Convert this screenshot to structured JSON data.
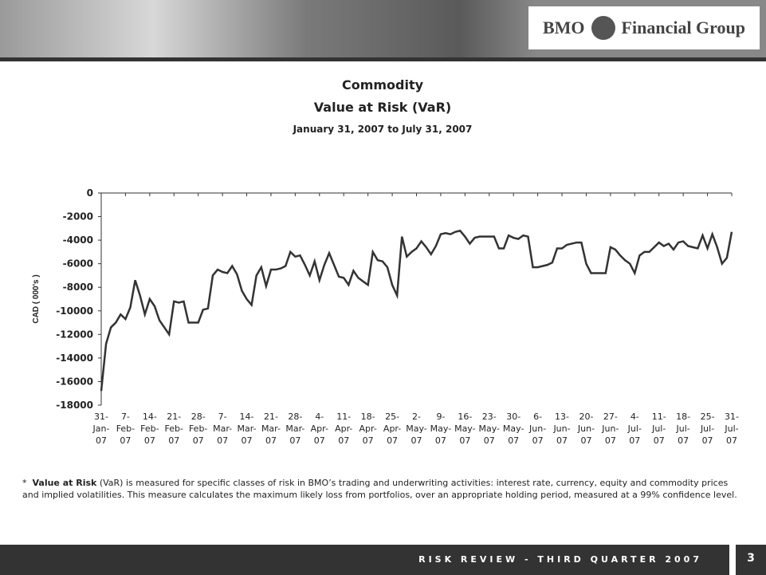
{
  "header": {
    "brand": "BMO",
    "brand_suffix": "Financial Group"
  },
  "chart_data": {
    "type": "line",
    "title": "Commodity",
    "title_line2": "Value at Risk  (VaR)",
    "subtitle": "January 31, 2007 to July 31, 2007",
    "y_label": "CAD ( 000's )",
    "categories": [
      "31-Jan-07",
      null,
      null,
      null,
      null,
      "7-Feb-07",
      null,
      null,
      null,
      null,
      "14-Feb-07",
      null,
      null,
      null,
      null,
      "21-Feb-07",
      null,
      null,
      null,
      null,
      "28-Feb-07",
      null,
      null,
      null,
      null,
      "7-Mar-07",
      null,
      null,
      null,
      null,
      "14-Mar-07",
      null,
      null,
      null,
      null,
      "21-Mar-07",
      null,
      null,
      null,
      null,
      "28-Mar-07",
      null,
      null,
      null,
      null,
      "4-Apr-07",
      null,
      null,
      null,
      null,
      "11-Apr-07",
      null,
      null,
      null,
      null,
      "18-Apr-07",
      null,
      null,
      null,
      null,
      "25-Apr-07",
      null,
      null,
      null,
      null,
      "2-May-07",
      null,
      null,
      null,
      null,
      "9-May-07",
      null,
      null,
      null,
      null,
      "16-May-07",
      null,
      null,
      null,
      null,
      "23-May-07",
      null,
      null,
      null,
      null,
      "30-May-07",
      null,
      null,
      null,
      null,
      "6-Jun-07",
      null,
      null,
      null,
      null,
      "13-Jun-07",
      null,
      null,
      null,
      null,
      "20-Jun-07",
      null,
      null,
      null,
      null,
      "27-Jun-07",
      null,
      null,
      null,
      null,
      "4-Jul-07",
      null,
      null,
      null,
      null,
      "11-Jul-07",
      null,
      null,
      null,
      null,
      "18-Jul-07",
      null,
      null,
      null,
      null,
      "25-Jul-07",
      null,
      null,
      null,
      null,
      "31-Jul-07"
    ],
    "values": [
      -16800,
      -12800,
      -11400,
      -11000,
      -10300,
      -10700,
      -9700,
      -7400,
      -8700,
      -10300,
      -9000,
      -9600,
      -10800,
      -11400,
      -12000,
      -9200,
      -9300,
      -9200,
      -11000,
      -11000,
      -11000,
      -9900,
      -9800,
      -7000,
      -6500,
      -6700,
      -6800,
      -6200,
      -6900,
      -8300,
      -9000,
      -9500,
      -7000,
      -6300,
      -7900,
      -6500,
      -6500,
      -6400,
      -6200,
      -5000,
      -5400,
      -5300,
      -6100,
      -7000,
      -5800,
      -7400,
      -6100,
      -5100,
      -6100,
      -7100,
      -7200,
      -7800,
      -6600,
      -7200,
      -7500,
      -7800,
      -5000,
      -5700,
      -5800,
      -6300,
      -7800,
      -8700,
      -3700,
      -5400,
      -5000,
      -4700,
      -4100,
      -4600,
      -5200,
      -4500,
      -3500,
      -3400,
      -3500,
      -3300,
      -3200,
      -3700,
      -4300,
      -3800,
      -3700,
      -3700,
      -3700,
      -3700,
      -4700,
      -4700,
      -3600,
      -3800,
      -3900,
      -3600,
      -3700,
      -6300,
      -6300,
      -6200,
      -6100,
      -5900,
      -4700,
      -4700,
      -4400,
      -4300,
      -4200,
      -4200,
      -6000,
      -6800,
      -6800,
      -6800,
      -6800,
      -4600,
      -4800,
      -5300,
      -5700,
      -6000,
      -6800,
      -5300,
      -5000,
      -5000,
      -4600,
      -4200,
      -4500,
      -4300,
      -4800,
      -4200,
      -4100,
      -4500,
      -4600,
      -4700,
      -3600,
      -4700,
      -3500,
      -4600,
      -6000,
      -5500,
      -3300
    ],
    "color": "#333333",
    "ylim": [
      -18000,
      0
    ],
    "yticks": [
      0,
      -2000,
      -4000,
      -6000,
      -8000,
      -10000,
      -12000,
      -14000,
      -16000,
      -18000
    ]
  },
  "footnote": {
    "marker": "*",
    "term": "Value at Risk",
    "text": " (VaR) is measured for specific classes of risk in BMO’s trading and underwriting activities: interest rate, currency, equity and commodity prices and implied volatilities. This measure calculates the maximum likely loss from portfolios, over an appropriate holding period, measured at a 99% confidence level."
  },
  "footer": {
    "text": "RISK REVIEW - THIRD QUARTER 2007",
    "page": "3"
  }
}
